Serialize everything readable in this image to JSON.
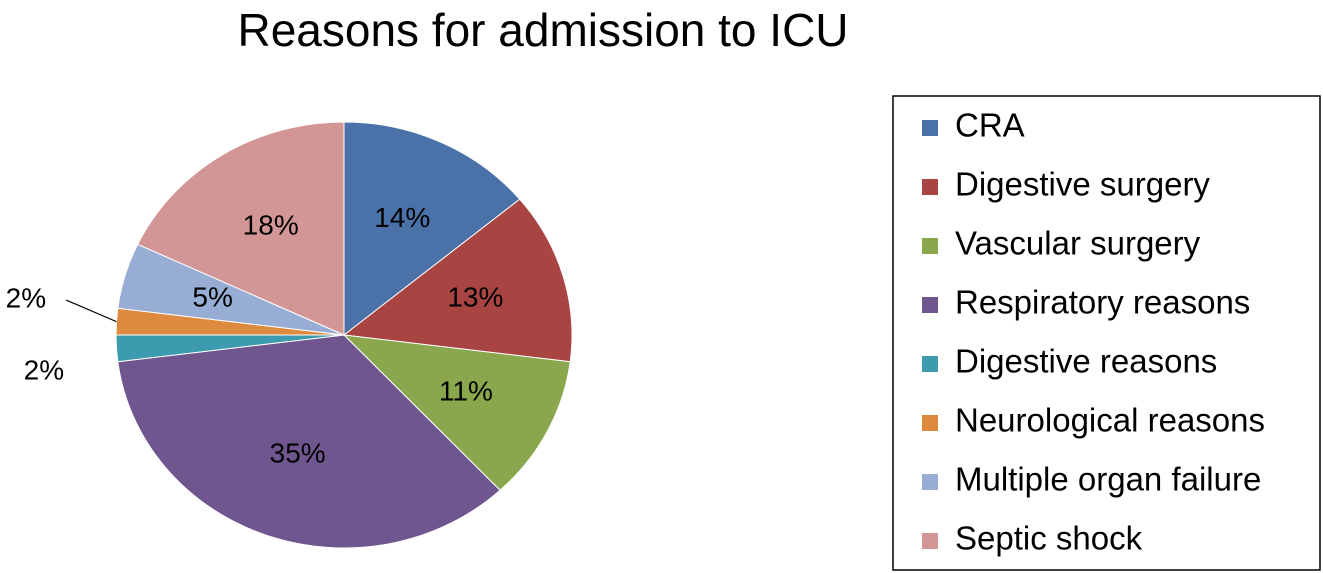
{
  "chart_data": {
    "type": "pie",
    "title": "Reasons for admission to ICU",
    "categories": [
      "CRA",
      "Digestive surgery",
      "Vascular surgery",
      "Respiratory reasons",
      "Digestive reasons",
      "Neurological reasons",
      "Multiple organ failure",
      "Septic shock"
    ],
    "values": [
      14,
      13,
      11,
      35,
      2,
      2,
      5,
      18
    ],
    "value_labels": [
      "14%",
      "13%",
      "11%",
      "35%",
      "2%",
      "2%",
      "5%",
      "18%"
    ],
    "colors": [
      "#4a72a8",
      "#a84442",
      "#8aa74d",
      "#6f568f",
      "#3d9bb0",
      "#dd8a3e",
      "#98add3",
      "#d39696"
    ],
    "legend": "right"
  }
}
